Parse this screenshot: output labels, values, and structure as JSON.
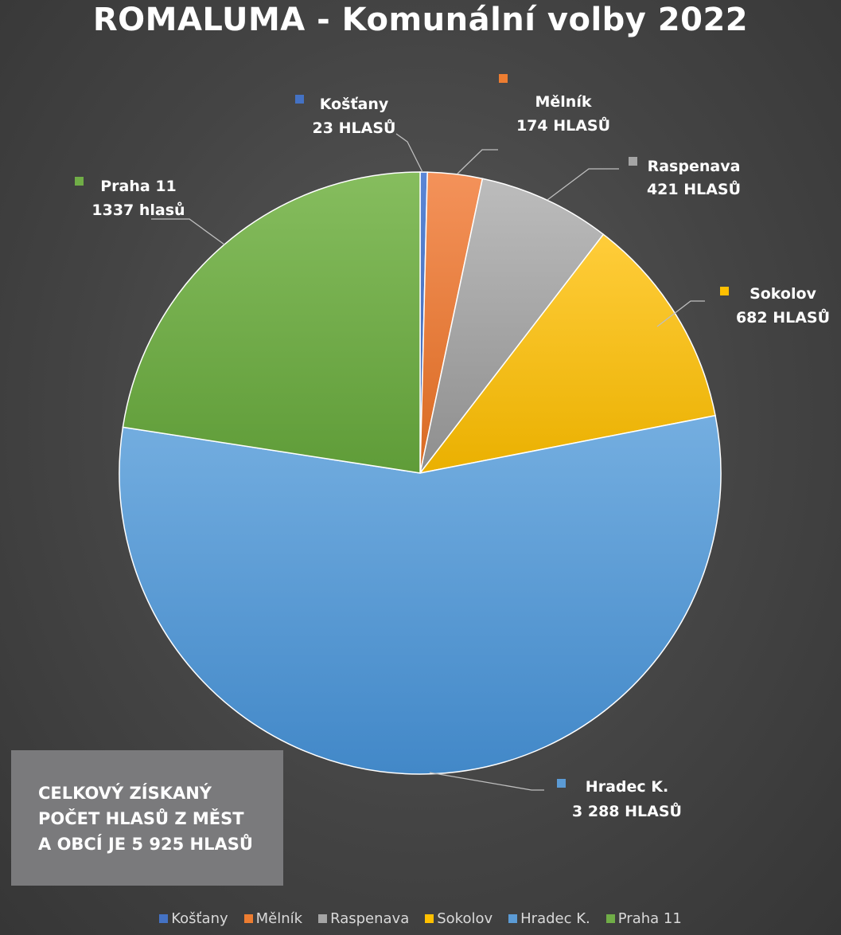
{
  "chart_data": {
    "type": "pie",
    "title": "ROMALUMA - Komunální volby 2022",
    "categories": [
      "Košťany",
      "Mělník",
      "Raspenava",
      "Sokolov",
      "Hradec K.",
      "Praha 11"
    ],
    "values": [
      23,
      174,
      421,
      682,
      3288,
      1337
    ],
    "colors": [
      "#4472c4",
      "#ed7d31",
      "#a5a5a5",
      "#ffc000",
      "#5b9bd5",
      "#70ad47"
    ],
    "data_labels": [
      {
        "name": "Košťany",
        "value": "23 HLASŮ"
      },
      {
        "name": "Mělník",
        "value": "174 HLASŮ"
      },
      {
        "name": "Raspenava",
        "value": "421 HLASŮ"
      },
      {
        "name": "Sokolov",
        "value": "682 HLASŮ"
      },
      {
        "name": "Hradec K.",
        "value": "3 288 HLASŮ"
      },
      {
        "name": "Praha 11",
        "value": "1337 hlasů"
      }
    ],
    "legend": "bottom"
  },
  "summary": {
    "lines": [
      "CELKOVÝ ZÍSKANÝ",
      "POČET HLASŮ Z MĚST",
      "A OBCÍ JE  5 925 HLASŮ"
    ]
  }
}
